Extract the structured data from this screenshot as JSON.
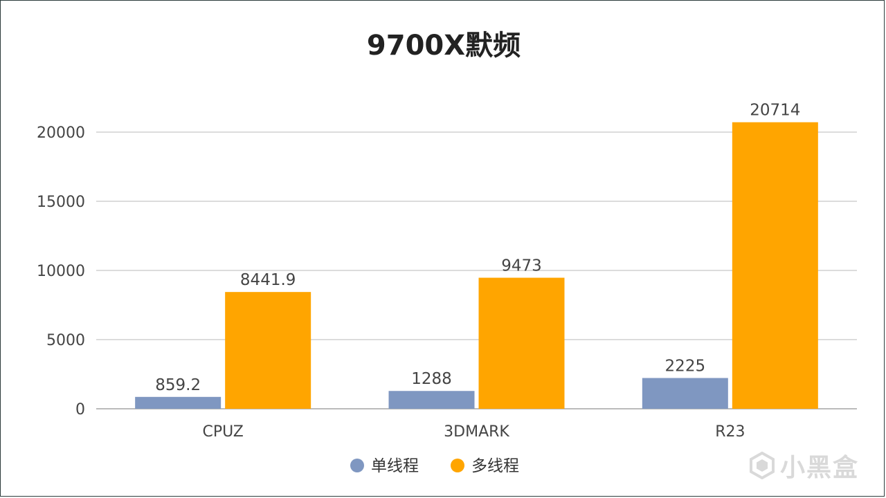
{
  "chart_data": {
    "type": "bar",
    "title": "9700X默频",
    "xlabel": "",
    "ylabel": "",
    "categories": [
      "CPUZ",
      "3DMARK",
      "R23"
    ],
    "series": [
      {
        "name": "单线程",
        "values": [
          859.2,
          1288,
          2225
        ],
        "labels": [
          "859.2",
          "1288",
          "2225"
        ],
        "color": "#7f97c1"
      },
      {
        "name": "多线程",
        "values": [
          8441.9,
          9473,
          20714
        ],
        "labels": [
          "8441.9",
          "9473",
          "20714"
        ],
        "color": "#ffa500"
      }
    ],
    "ylim": [
      0,
      22000
    ],
    "yticks": [
      0,
      5000,
      10000,
      15000,
      20000
    ],
    "grid": true,
    "legend": "bottom-center"
  },
  "style": {
    "grid_color": "#d0d0d0",
    "axis_color": "#bbbbbb"
  },
  "watermark": {
    "text": "小黑盒",
    "icon": "heybox-logo-icon"
  }
}
